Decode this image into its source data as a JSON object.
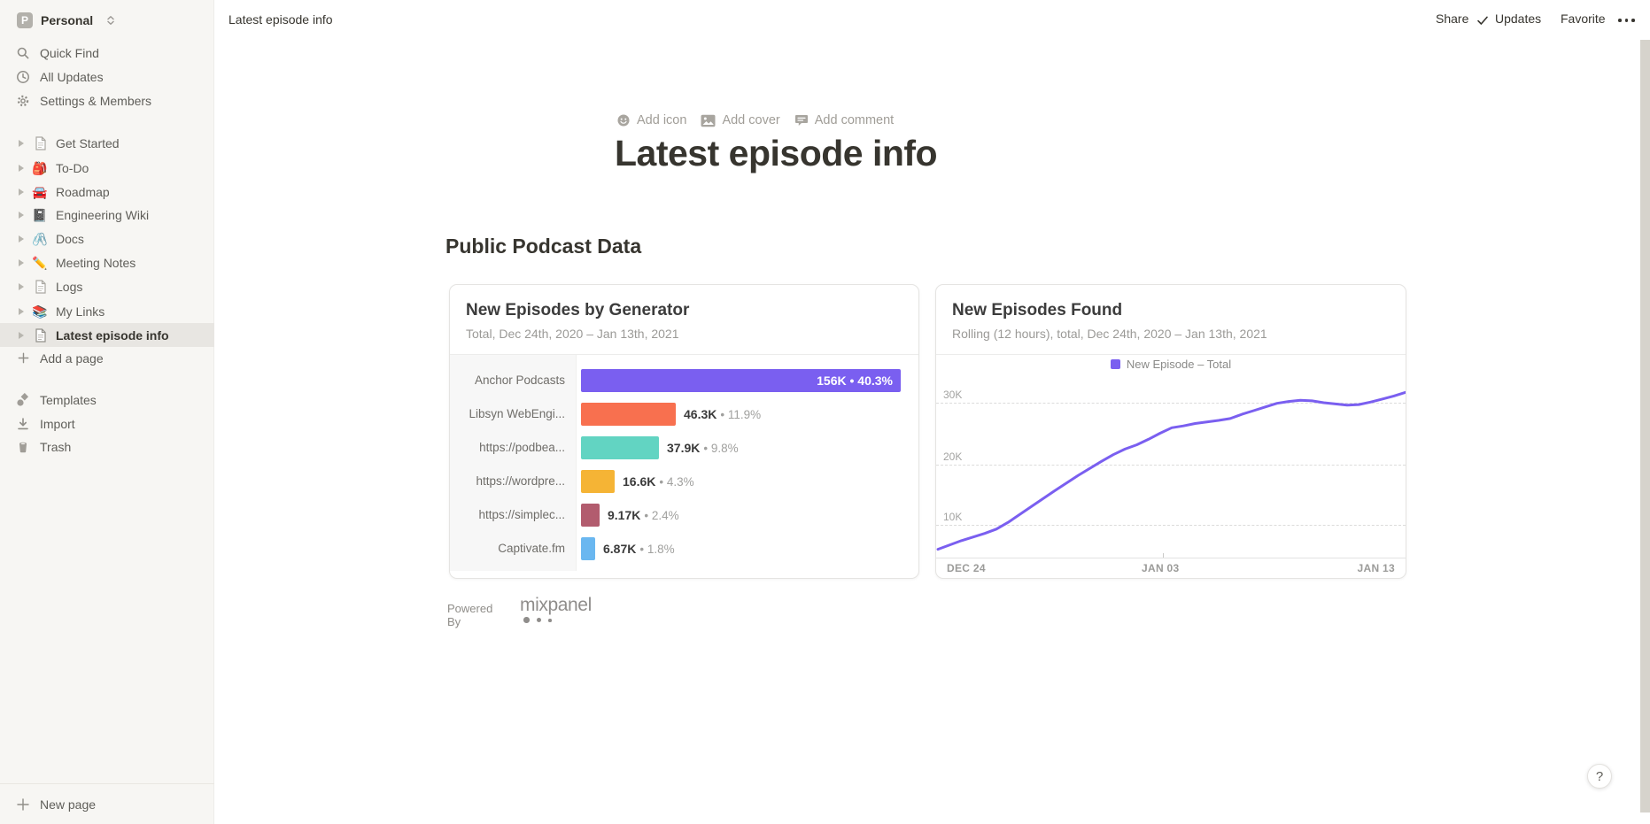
{
  "workspace": {
    "initial": "P",
    "name": "Personal"
  },
  "sidebar": {
    "top_items": [
      {
        "label": "Quick Find",
        "icon": "search-icon"
      },
      {
        "label": "All Updates",
        "icon": "clock-icon"
      },
      {
        "label": "Settings & Members",
        "icon": "gear-icon"
      }
    ],
    "pages": [
      {
        "label": "Get Started",
        "icon": "page-icon"
      },
      {
        "label": "To-Do",
        "emoji": "🎒"
      },
      {
        "label": "Roadmap",
        "emoji": "🚘"
      },
      {
        "label": "Engineering Wiki",
        "emoji": "📓"
      },
      {
        "label": "Docs",
        "emoji": "🖇️"
      },
      {
        "label": "Meeting Notes",
        "emoji": "✏️"
      },
      {
        "label": "Logs",
        "icon": "page-icon"
      },
      {
        "label": "My Links",
        "emoji": "📚"
      },
      {
        "label": "Latest episode info",
        "icon": "page-icon",
        "selected": true
      }
    ],
    "add_page": "Add a page",
    "bottom_items": [
      {
        "label": "Templates",
        "icon": "templates-icon"
      },
      {
        "label": "Import",
        "icon": "import-icon"
      },
      {
        "label": "Trash",
        "icon": "trash-icon"
      }
    ],
    "new_page": "New page"
  },
  "topbar": {
    "breadcrumb": "Latest episode info",
    "share": "Share",
    "updates": "Updates",
    "favorite": "Favorite"
  },
  "page": {
    "add_icon": "Add icon",
    "add_cover": "Add cover",
    "add_comment": "Add comment",
    "title": "Latest episode info",
    "section_heading": "Public Podcast Data",
    "powered_by": "Powered By",
    "brand": "mixpanel"
  },
  "help": "?",
  "chart_data": [
    {
      "type": "bar",
      "orientation": "horizontal",
      "title": "New Episodes by Generator",
      "subtitle": "Total, Dec 24th, 2020 – Jan 13th, 2021",
      "categories": [
        "Anchor Podcasts",
        "Libsyn WebEngi...",
        "https://podbea...",
        "https://wordpre...",
        "https://simplec...",
        "Captivate.fm"
      ],
      "values": [
        156000,
        46300,
        37900,
        16600,
        9170,
        6870
      ],
      "value_labels": [
        "156K",
        "46.3K",
        "37.9K",
        "16.6K",
        "9.17K",
        "6.87K"
      ],
      "percents": [
        40.3,
        11.9,
        9.8,
        4.3,
        2.4,
        1.8
      ],
      "percent_display": [
        "• 40.3%",
        "• 11.9%",
        "• 9.8%",
        "• 4.3%",
        "• 2.4%",
        "• 1.8%"
      ],
      "colors": [
        "#7a5ff0",
        "#f8704f",
        "#62d4c2",
        "#f5b435",
        "#b25c6e",
        "#6ab7f0"
      ]
    },
    {
      "type": "line",
      "title": "New Episodes Found",
      "subtitle": "Rolling (12 hours), total, Dec 24th, 2020 – Jan 13th, 2021",
      "legend": [
        {
          "label": "New Episode – Total",
          "color": "#7a5ff0"
        }
      ],
      "x_ticks": [
        "DEC 24",
        "JAN 03",
        "JAN 13"
      ],
      "y_ticks": [
        "30K",
        "20K",
        "10K"
      ],
      "xlim": [
        0,
        20
      ],
      "ylim": [
        4600,
        33500
      ],
      "grid": "dashed-horizontal",
      "color": "#7a5ff0",
      "points": [
        [
          0,
          6000
        ],
        [
          1,
          7400
        ],
        [
          2,
          8600
        ],
        [
          2.5,
          9300
        ],
        [
          3,
          10400
        ],
        [
          4,
          13000
        ],
        [
          5,
          15600
        ],
        [
          6,
          18100
        ],
        [
          7,
          20400
        ],
        [
          7.5,
          21500
        ],
        [
          8,
          22400
        ],
        [
          8.5,
          23100
        ],
        [
          9,
          24000
        ],
        [
          9.5,
          25000
        ],
        [
          10,
          25900
        ],
        [
          10.5,
          26200
        ],
        [
          11,
          26600
        ],
        [
          12,
          27100
        ],
        [
          12.5,
          27400
        ],
        [
          13,
          28100
        ],
        [
          13.5,
          28700
        ],
        [
          14,
          29300
        ],
        [
          14.5,
          29900
        ],
        [
          15,
          30200
        ],
        [
          15.5,
          30400
        ],
        [
          16,
          30300
        ],
        [
          16.5,
          30000
        ],
        [
          17,
          29800
        ],
        [
          17.5,
          29600
        ],
        [
          18,
          29700
        ],
        [
          18.5,
          30100
        ],
        [
          19,
          30600
        ],
        [
          19.5,
          31100
        ],
        [
          20,
          31700
        ]
      ]
    }
  ]
}
